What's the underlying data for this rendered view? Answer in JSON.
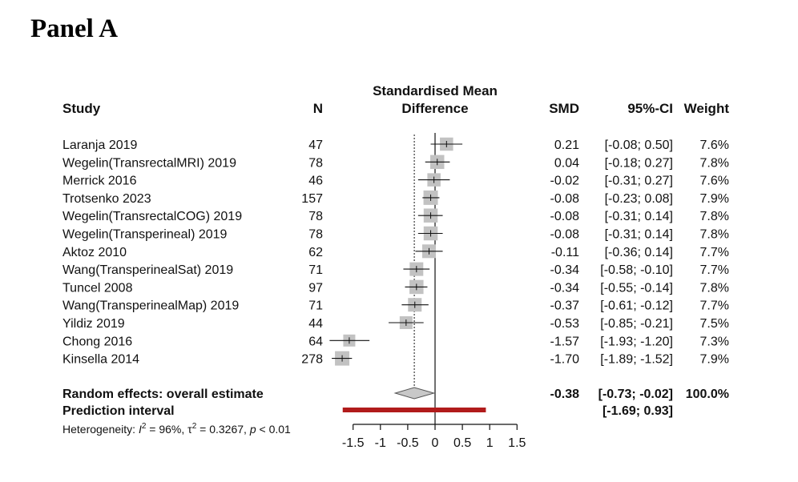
{
  "panel_title": "Panel A",
  "chart_data": {
    "type": "forest",
    "xlim": [
      -1.5,
      1.5
    ],
    "x_ticks": [
      -1.5,
      -1,
      -0.5,
      0,
      0.5,
      1,
      1.5
    ],
    "x_tick_labels": [
      "-1.5",
      "-1",
      "-0.5",
      "0",
      "0.5",
      "1",
      "1.5"
    ],
    "null_line": 0,
    "pooled_reference_line": -0.38,
    "headers": {
      "study": "Study",
      "n": "N",
      "plot_line1": "Standardised Mean",
      "plot_line2": "Difference",
      "smd": "SMD",
      "ci": "95%-CI",
      "weight": "Weight"
    },
    "studies": [
      {
        "name": "Laranja 2019",
        "n": "47",
        "smd": 0.21,
        "lower": -0.08,
        "upper": 0.5,
        "smd_text": "0.21",
        "ci_text": "[-0.08; 0.50]",
        "weight": 7.6,
        "weight_text": "7.6%"
      },
      {
        "name": "Wegelin(TransrectalMRI) 2019",
        "n": "78",
        "smd": 0.04,
        "lower": -0.18,
        "upper": 0.27,
        "smd_text": "0.04",
        "ci_text": "[-0.18; 0.27]",
        "weight": 7.8,
        "weight_text": "7.8%"
      },
      {
        "name": "Merrick 2016",
        "n": "46",
        "smd": -0.02,
        "lower": -0.31,
        "upper": 0.27,
        "smd_text": "-0.02",
        "ci_text": "[-0.31; 0.27]",
        "weight": 7.6,
        "weight_text": "7.6%"
      },
      {
        "name": "Trotsenko 2023",
        "n": "157",
        "smd": -0.08,
        "lower": -0.23,
        "upper": 0.08,
        "smd_text": "-0.08",
        "ci_text": "[-0.23; 0.08]",
        "weight": 7.9,
        "weight_text": "7.9%"
      },
      {
        "name": "Wegelin(TransrectalCOG) 2019",
        "n": "78",
        "smd": -0.08,
        "lower": -0.31,
        "upper": 0.14,
        "smd_text": "-0.08",
        "ci_text": "[-0.31; 0.14]",
        "weight": 7.8,
        "weight_text": "7.8%"
      },
      {
        "name": "Wegelin(Transperineal) 2019",
        "n": "78",
        "smd": -0.08,
        "lower": -0.31,
        "upper": 0.14,
        "smd_text": "-0.08",
        "ci_text": "[-0.31; 0.14]",
        "weight": 7.8,
        "weight_text": "7.8%"
      },
      {
        "name": "Aktoz 2010",
        "n": "62",
        "smd": -0.11,
        "lower": -0.36,
        "upper": 0.14,
        "smd_text": "-0.11",
        "ci_text": "[-0.36; 0.14]",
        "weight": 7.7,
        "weight_text": "7.7%"
      },
      {
        "name": "Wang(TransperinealSat) 2019",
        "n": "71",
        "smd": -0.34,
        "lower": -0.58,
        "upper": -0.1,
        "smd_text": "-0.34",
        "ci_text": "[-0.58; -0.10]",
        "weight": 7.7,
        "weight_text": "7.7%"
      },
      {
        "name": "Tuncel 2008",
        "n": "97",
        "smd": -0.34,
        "lower": -0.55,
        "upper": -0.14,
        "smd_text": "-0.34",
        "ci_text": "[-0.55; -0.14]",
        "weight": 7.8,
        "weight_text": "7.8%"
      },
      {
        "name": "Wang(TransperinealMap) 2019",
        "n": "71",
        "smd": -0.37,
        "lower": -0.61,
        "upper": -0.12,
        "smd_text": "-0.37",
        "ci_text": "[-0.61; -0.12]",
        "weight": 7.7,
        "weight_text": "7.7%"
      },
      {
        "name": "Yildiz 2019",
        "n": "44",
        "smd": -0.53,
        "lower": -0.85,
        "upper": -0.21,
        "smd_text": "-0.53",
        "ci_text": "[-0.85; -0.21]",
        "weight": 7.5,
        "weight_text": "7.5%"
      },
      {
        "name": "Chong 2016",
        "n": "64",
        "smd": -1.57,
        "lower": -1.93,
        "upper": -1.2,
        "smd_text": "-1.57",
        "ci_text": "[-1.93; -1.20]",
        "weight": 7.3,
        "weight_text": "7.3%"
      },
      {
        "name": "Kinsella 2014",
        "n": "278",
        "smd": -1.7,
        "lower": -1.89,
        "upper": -1.52,
        "smd_text": "-1.70",
        "ci_text": "[-1.89; -1.52]",
        "weight": 7.9,
        "weight_text": "7.9%"
      }
    ],
    "overall": {
      "label": "Random effects: overall estimate",
      "smd": -0.38,
      "lower": -0.73,
      "upper": -0.02,
      "smd_text": "-0.38",
      "ci_text": "[-0.73; -0.02]",
      "weight_text": "100.0%"
    },
    "prediction": {
      "label": "Prediction interval",
      "lower": -1.69,
      "upper": 0.93,
      "ci_text": "[-1.69; 0.93]"
    },
    "heterogeneity": {
      "prefix": "Heterogeneity: ",
      "i2_symbol": "I",
      "i2_value": " = 96%, ",
      "tau2_symbol": "τ",
      "tau2_value": " = 0.3267, ",
      "p_symbol": "p",
      "p_value": " < 0.01"
    },
    "colors": {
      "box": "#c2c2c2",
      "diamond_fill": "#c8c8c8",
      "diamond_stroke": "#555555",
      "prediction": "#b11b1b",
      "line": "#111111"
    }
  }
}
